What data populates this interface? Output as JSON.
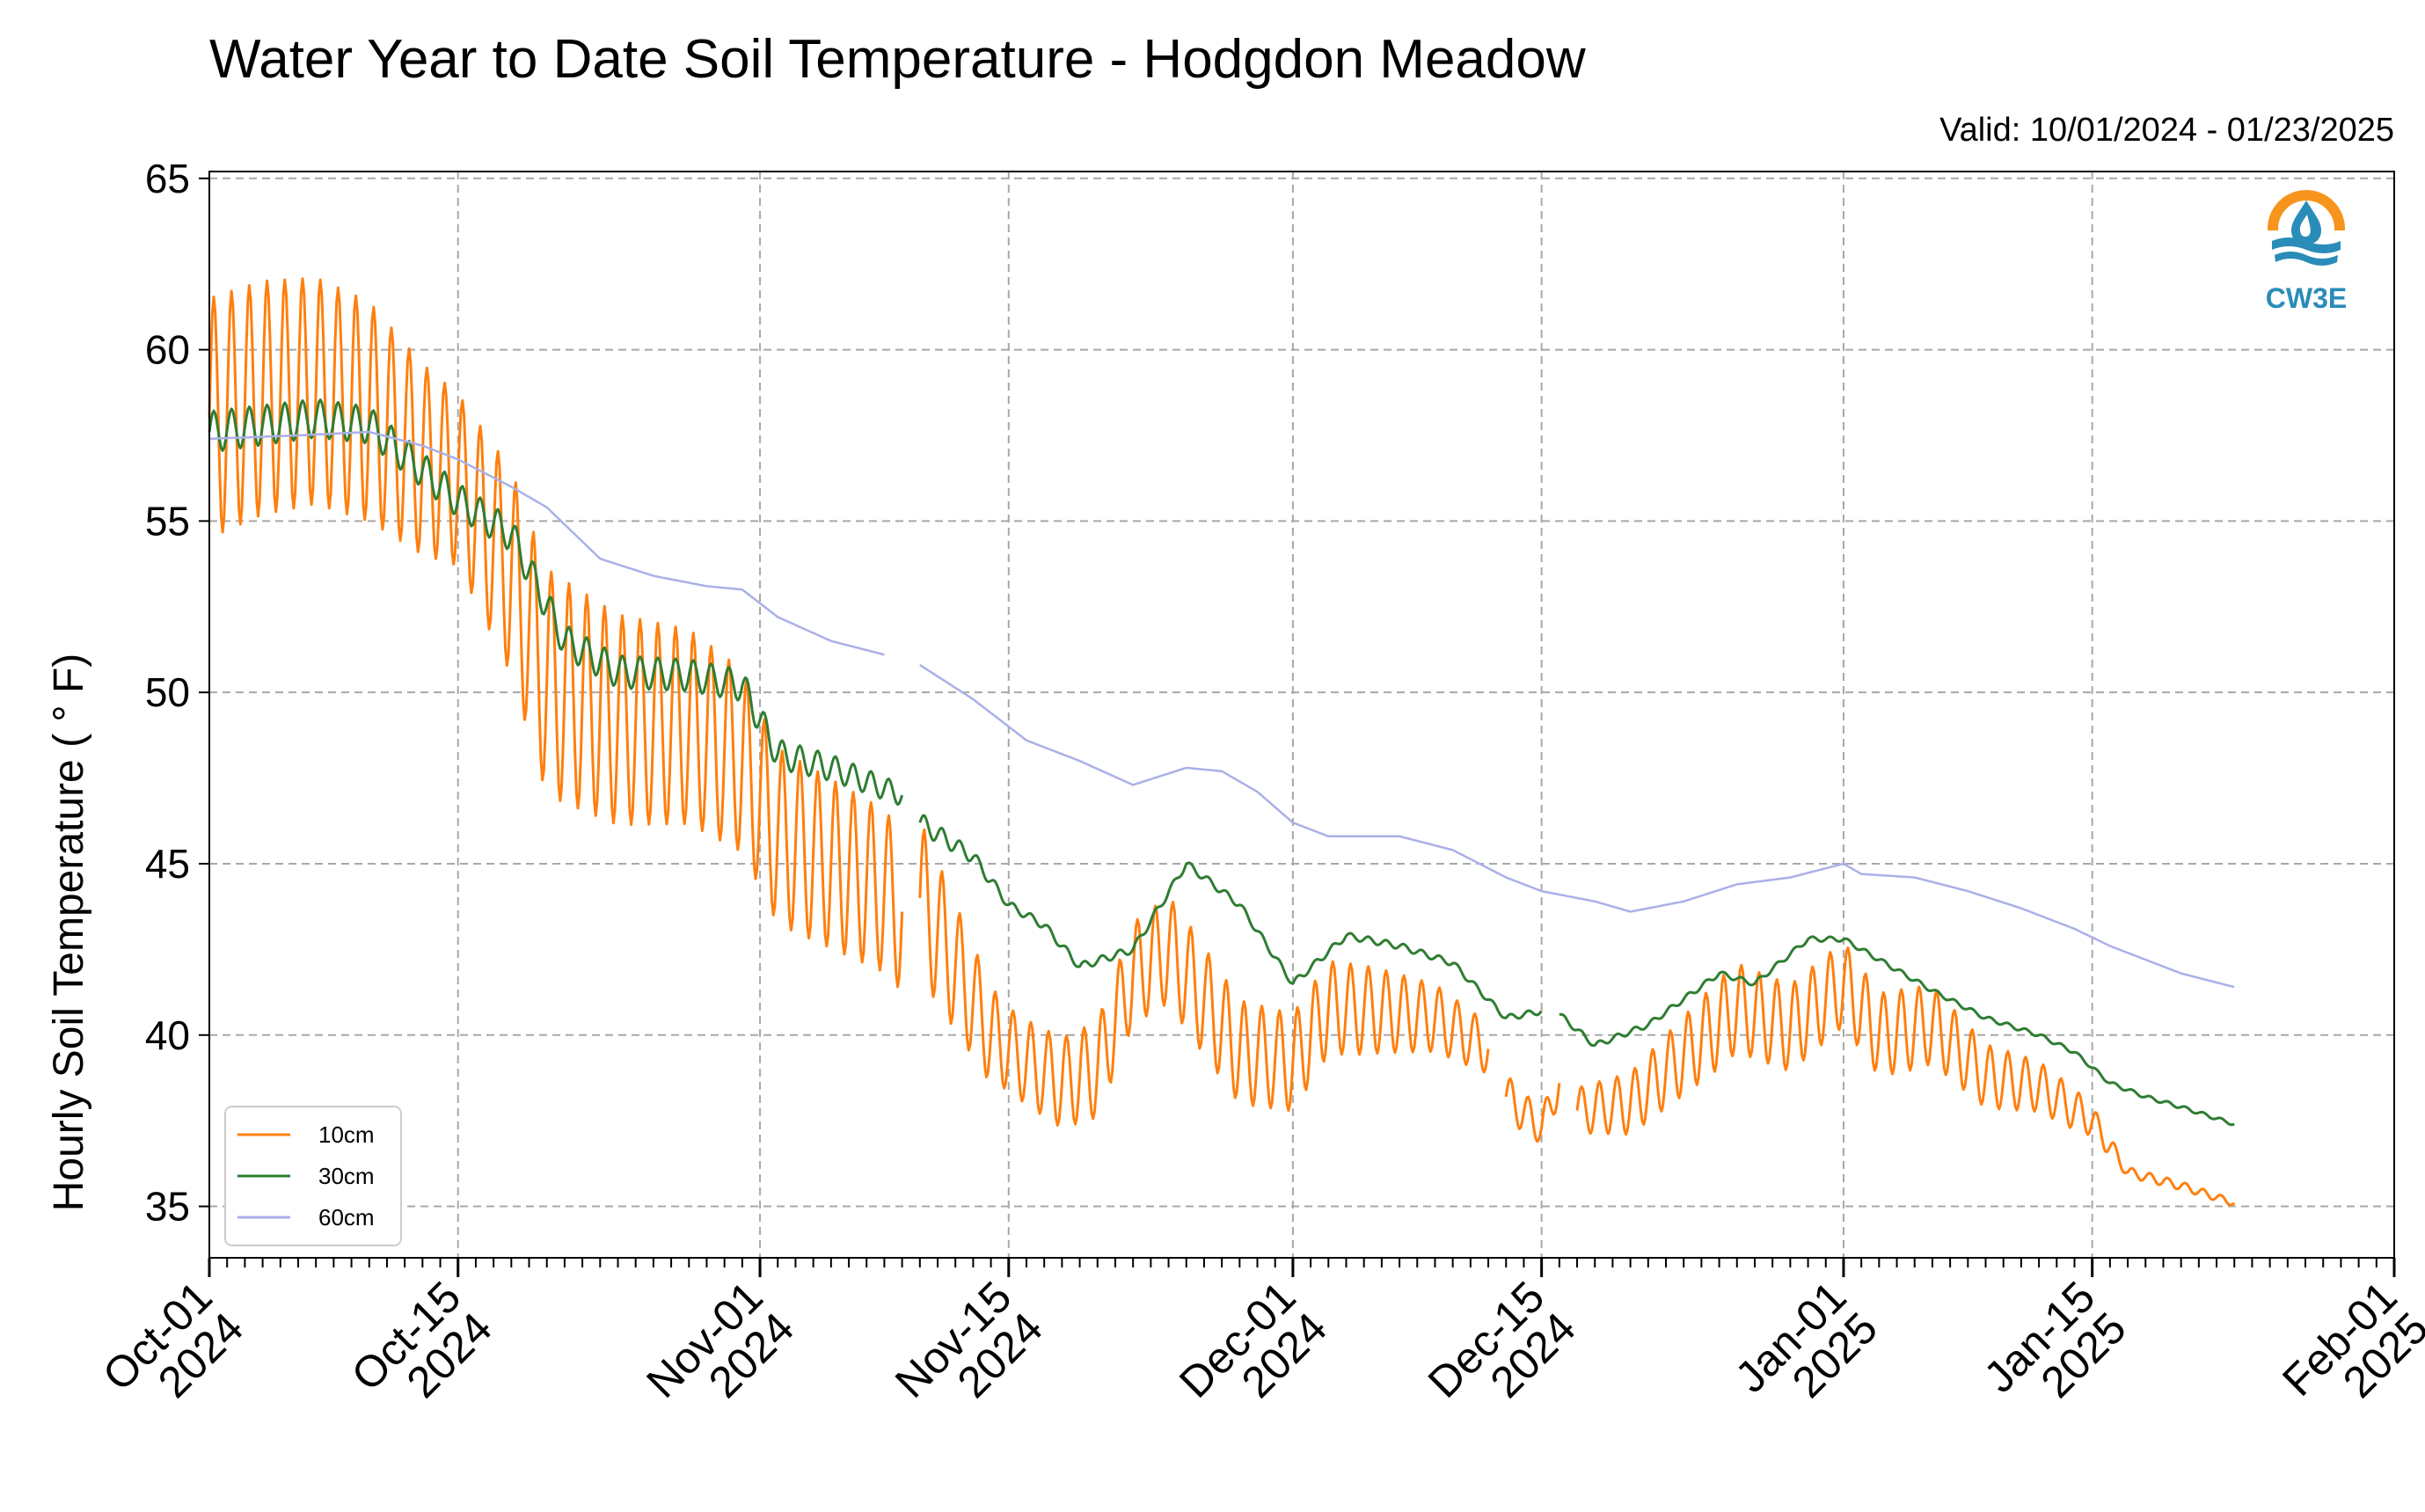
{
  "chart_data": {
    "type": "line",
    "title": "Water Year to Date Soil Temperature - Hodgdon Meadow",
    "subtitle": "Valid: 10/01/2024 - 01/23/2025",
    "ylabel": "Hourly Soil Temperature ( ° F)",
    "xlabel": "",
    "ylim": [
      33.5,
      65.2
    ],
    "xlim": [
      "2024-10-01",
      "2025-02-01"
    ],
    "yticks": [
      35,
      40,
      45,
      50,
      55,
      60,
      65
    ],
    "xticks": [
      {
        "date": "2024-10-01",
        "line1": "Oct-01",
        "line2": "2024"
      },
      {
        "date": "2024-10-15",
        "line1": "Oct-15",
        "line2": "2024"
      },
      {
        "date": "2024-11-01",
        "line1": "Nov-01",
        "line2": "2024"
      },
      {
        "date": "2024-11-15",
        "line1": "Nov-15",
        "line2": "2024"
      },
      {
        "date": "2024-12-01",
        "line1": "Dec-01",
        "line2": "2024"
      },
      {
        "date": "2024-12-15",
        "line1": "Dec-15",
        "line2": "2024"
      },
      {
        "date": "2025-01-01",
        "line1": "Jan-01",
        "line2": "2025"
      },
      {
        "date": "2025-01-15",
        "line1": "Jan-15",
        "line2": "2025"
      },
      {
        "date": "2025-02-01",
        "line1": "Feb-01",
        "line2": "2025"
      }
    ],
    "grid": true,
    "legend_position": "bottom-left",
    "logo_text": "CW3E",
    "series": [
      {
        "name": "10cm",
        "color": "#ff7f0e",
        "base": [
          [
            "2024-10-01",
            58.0
          ],
          [
            "2024-10-04",
            58.6
          ],
          [
            "2024-10-07",
            58.8
          ],
          [
            "2024-10-10",
            58.2
          ],
          [
            "2024-10-13",
            56.8
          ],
          [
            "2024-10-15",
            56.2
          ],
          [
            "2024-10-18",
            53.5
          ],
          [
            "2024-10-20",
            50.3
          ],
          [
            "2024-10-24",
            49.2
          ],
          [
            "2024-10-28",
            49.0
          ],
          [
            "2024-10-31",
            48.0
          ],
          [
            "2024-11-02",
            45.8
          ],
          [
            "2024-11-05",
            45.0
          ],
          [
            "2024-11-08",
            44.2
          ],
          [
            "2024-11-09",
            43.6
          ],
          [
            "2024-11-10",
            null
          ],
          [
            "2024-11-10",
            44.0
          ],
          [
            "2024-11-12",
            42.0
          ],
          [
            "2024-11-14",
            40.0
          ],
          [
            "2024-11-16",
            39.2
          ],
          [
            "2024-11-18",
            38.6
          ],
          [
            "2024-11-20",
            39.0
          ],
          [
            "2024-11-22",
            41.8
          ],
          [
            "2024-11-24",
            42.5
          ],
          [
            "2024-11-26",
            41.0
          ],
          [
            "2024-11-28",
            39.5
          ],
          [
            "2024-12-01",
            39.2
          ],
          [
            "2024-12-03",
            40.8
          ],
          [
            "2024-12-06",
            40.7
          ],
          [
            "2024-12-09",
            40.5
          ],
          [
            "2024-12-12",
            39.6
          ],
          [
            "2024-12-13",
            null
          ],
          [
            "2024-12-13",
            38.2
          ],
          [
            "2024-12-15",
            37.3
          ],
          [
            "2024-12-16",
            38.6
          ],
          [
            "2024-12-17",
            null
          ],
          [
            "2024-12-17",
            37.8
          ],
          [
            "2024-12-20",
            38.0
          ],
          [
            "2024-12-23",
            39.4
          ],
          [
            "2024-12-26",
            40.8
          ],
          [
            "2024-12-29",
            40.2
          ],
          [
            "2025-01-01",
            41.5
          ],
          [
            "2025-01-03",
            40.0
          ],
          [
            "2025-01-06",
            40.3
          ],
          [
            "2025-01-09",
            38.8
          ],
          [
            "2025-01-12",
            38.5
          ],
          [
            "2025-01-15",
            37.5
          ],
          [
            "2025-01-17",
            36.0
          ],
          [
            "2025-01-20",
            35.6
          ],
          [
            "2025-01-23",
            35.1
          ]
        ],
        "diurnal_amplitude": [
          [
            "2024-10-01",
            3.5
          ],
          [
            "2024-10-10",
            3.2
          ],
          [
            "2024-10-15",
            2.5
          ],
          [
            "2024-10-20",
            3.3
          ],
          [
            "2024-11-01",
            2.6
          ],
          [
            "2024-11-10",
            2.3
          ],
          [
            "2024-11-15",
            1.2
          ],
          [
            "2024-11-25",
            1.6
          ],
          [
            "2024-12-05",
            1.3
          ],
          [
            "2024-12-15",
            0.5
          ],
          [
            "2024-12-25",
            1.3
          ],
          [
            "2025-01-05",
            1.2
          ],
          [
            "2025-01-14",
            0.6
          ],
          [
            "2025-01-17",
            0.15
          ],
          [
            "2025-01-23",
            0.1
          ]
        ]
      },
      {
        "name": "30cm",
        "color": "#2e7d32",
        "base": [
          [
            "2024-10-01",
            57.6
          ],
          [
            "2024-10-07",
            58.0
          ],
          [
            "2024-10-10",
            57.8
          ],
          [
            "2024-10-15",
            55.6
          ],
          [
            "2024-10-18",
            54.6
          ],
          [
            "2024-10-21",
            51.5
          ],
          [
            "2024-10-24",
            50.6
          ],
          [
            "2024-10-28",
            50.5
          ],
          [
            "2024-10-31",
            50.2
          ],
          [
            "2024-11-02",
            48.2
          ],
          [
            "2024-11-05",
            47.8
          ],
          [
            "2024-11-09",
            47.0
          ],
          [
            "2024-11-10",
            null
          ],
          [
            "2024-11-10",
            46.2
          ],
          [
            "2024-11-13",
            45.2
          ],
          [
            "2024-11-15",
            43.8
          ],
          [
            "2024-11-17",
            43.2
          ],
          [
            "2024-11-19",
            42.0
          ],
          [
            "2024-11-22",
            42.5
          ],
          [
            "2024-11-25",
            45.0
          ],
          [
            "2024-11-28",
            43.8
          ],
          [
            "2024-12-01",
            41.5
          ],
          [
            "2024-12-04",
            42.9
          ],
          [
            "2024-12-07",
            42.6
          ],
          [
            "2024-12-10",
            42.1
          ],
          [
            "2024-12-13",
            40.5
          ],
          [
            "2024-12-15",
            40.7
          ],
          [
            "2024-12-16",
            null
          ],
          [
            "2024-12-16",
            40.6
          ],
          [
            "2024-12-18",
            39.7
          ],
          [
            "2024-12-21",
            40.3
          ],
          [
            "2024-12-25",
            41.8
          ],
          [
            "2024-12-27",
            41.5
          ],
          [
            "2024-12-30",
            42.8
          ],
          [
            "2025-01-01",
            42.8
          ],
          [
            "2025-01-03",
            42.2
          ],
          [
            "2025-01-06",
            41.3
          ],
          [
            "2025-01-09",
            40.5
          ],
          [
            "2025-01-12",
            40.0
          ],
          [
            "2025-01-14",
            39.5
          ],
          [
            "2025-01-16",
            38.6
          ],
          [
            "2025-01-18",
            38.2
          ],
          [
            "2025-01-20",
            37.9
          ],
          [
            "2025-01-23",
            37.4
          ]
        ],
        "diurnal_amplitude": [
          [
            "2024-10-01",
            0.6
          ],
          [
            "2024-10-15",
            0.5
          ],
          [
            "2024-11-01",
            0.45
          ],
          [
            "2024-11-10",
            0.3
          ],
          [
            "2024-11-15",
            0.12
          ],
          [
            "2024-12-01",
            0.1
          ],
          [
            "2025-01-23",
            0.05
          ]
        ]
      },
      {
        "name": "60cm",
        "color": "#aab0e8",
        "base": [
          [
            "2024-10-01",
            57.4
          ],
          [
            "2024-10-06",
            57.5
          ],
          [
            "2024-10-10",
            57.6
          ],
          [
            "2024-10-13",
            57.2
          ],
          [
            "2024-10-15",
            56.8
          ],
          [
            "2024-10-18",
            56.0
          ],
          [
            "2024-10-20",
            55.4
          ],
          [
            "2024-10-23",
            53.9
          ],
          [
            "2024-10-26",
            53.4
          ],
          [
            "2024-10-29",
            53.1
          ],
          [
            "2024-10-31",
            53.0
          ],
          [
            "2024-11-02",
            52.2
          ],
          [
            "2024-11-05",
            51.5
          ],
          [
            "2024-11-08",
            51.1
          ],
          [
            "2024-11-09",
            null
          ],
          [
            "2024-11-10",
            50.8
          ],
          [
            "2024-11-13",
            49.8
          ],
          [
            "2024-11-16",
            48.6
          ],
          [
            "2024-11-19",
            48.0
          ],
          [
            "2024-11-22",
            47.3
          ],
          [
            "2024-11-25",
            47.8
          ],
          [
            "2024-11-27",
            47.7
          ],
          [
            "2024-11-29",
            47.1
          ],
          [
            "2024-12-01",
            46.2
          ],
          [
            "2024-12-03",
            45.8
          ],
          [
            "2024-12-07",
            45.8
          ],
          [
            "2024-12-10",
            45.4
          ],
          [
            "2024-12-13",
            44.6
          ],
          [
            "2024-12-15",
            44.2
          ],
          [
            "2024-12-18",
            43.9
          ],
          [
            "2024-12-20",
            43.6
          ],
          [
            "2024-12-23",
            43.9
          ],
          [
            "2024-12-26",
            44.4
          ],
          [
            "2024-12-29",
            44.6
          ],
          [
            "2025-01-01",
            45.0
          ],
          [
            "2025-01-02",
            44.7
          ],
          [
            "2025-01-05",
            44.6
          ],
          [
            "2025-01-08",
            44.2
          ],
          [
            "2025-01-11",
            43.7
          ],
          [
            "2025-01-14",
            43.1
          ],
          [
            "2025-01-16",
            42.6
          ],
          [
            "2025-01-18",
            42.2
          ],
          [
            "2025-01-20",
            41.8
          ],
          [
            "2025-01-23",
            41.4
          ]
        ],
        "diurnal_amplitude": [
          [
            "2024-10-01",
            0.0
          ],
          [
            "2025-01-23",
            0.0
          ]
        ]
      }
    ]
  }
}
